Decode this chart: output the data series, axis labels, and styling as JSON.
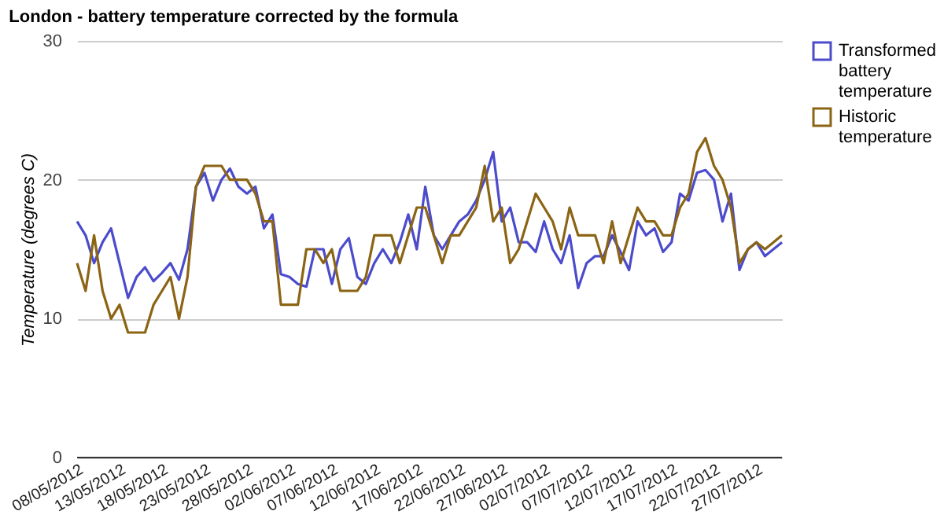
{
  "chart_data": {
    "type": "line",
    "title": "London - battery temperature corrected by the formula",
    "ylabel": "Temperature (degrees C)",
    "x": [
      "2012-05-08",
      "2012-05-09",
      "2012-05-10",
      "2012-05-11",
      "2012-05-12",
      "2012-05-13",
      "2012-05-14",
      "2012-05-15",
      "2012-05-16",
      "2012-05-17",
      "2012-05-18",
      "2012-05-19",
      "2012-05-20",
      "2012-05-21",
      "2012-05-22",
      "2012-05-23",
      "2012-05-24",
      "2012-05-25",
      "2012-05-26",
      "2012-05-27",
      "2012-05-28",
      "2012-05-29",
      "2012-05-30",
      "2012-05-31",
      "2012-06-01",
      "2012-06-02",
      "2012-06-03",
      "2012-06-04",
      "2012-06-05",
      "2012-06-06",
      "2012-06-07",
      "2012-06-08",
      "2012-06-09",
      "2012-06-10",
      "2012-06-11",
      "2012-06-12",
      "2012-06-13",
      "2012-06-14",
      "2012-06-15",
      "2012-06-16",
      "2012-06-17",
      "2012-06-18",
      "2012-06-19",
      "2012-06-20",
      "2012-06-21",
      "2012-06-22",
      "2012-06-23",
      "2012-06-24",
      "2012-06-25",
      "2012-06-26",
      "2012-06-27",
      "2012-06-28",
      "2012-06-29",
      "2012-06-30",
      "2012-07-01",
      "2012-07-02",
      "2012-07-03",
      "2012-07-04",
      "2012-07-05",
      "2012-07-06",
      "2012-07-07",
      "2012-07-08",
      "2012-07-09",
      "2012-07-10",
      "2012-07-11",
      "2012-07-12",
      "2012-07-13",
      "2012-07-14",
      "2012-07-15",
      "2012-07-16",
      "2012-07-17",
      "2012-07-18",
      "2012-07-19",
      "2012-07-20",
      "2012-07-21",
      "2012-07-22",
      "2012-07-23",
      "2012-07-24",
      "2012-07-25",
      "2012-07-26",
      "2012-07-27",
      "2012-07-28",
      "2012-07-29",
      "2012-07-30"
    ],
    "series": [
      {
        "name": "Transformed battery temperature",
        "color": "#4b4bcc",
        "values": [
          17,
          16,
          14,
          15.5,
          16.5,
          14,
          11.5,
          13,
          13.7,
          12.7,
          13.3,
          14,
          12.8,
          15,
          19.5,
          20.5,
          18.5,
          20,
          20.8,
          19.5,
          19,
          19.5,
          16.5,
          17.5,
          13.2,
          13,
          12.5,
          12.3,
          15,
          15,
          12.5,
          15,
          15.8,
          13,
          12.5,
          14,
          15,
          14,
          15.5,
          17.5,
          15,
          19.5,
          16,
          15,
          16,
          17,
          17.5,
          18.5,
          20,
          22,
          17,
          18,
          15.5,
          15.5,
          14.8,
          17,
          15,
          14,
          16,
          12.2,
          14,
          14.5,
          14.5,
          16,
          14.8,
          13.5,
          17,
          16,
          16.5,
          14.8,
          15.5,
          19,
          18.5,
          20.5,
          20.7,
          20,
          17,
          19,
          13.5,
          15,
          15.5,
          14.5,
          15,
          15.5
        ]
      },
      {
        "name": "Historic temperature",
        "color": "#8b6414",
        "values": [
          14,
          12,
          16,
          12,
          10,
          11,
          9,
          9,
          9,
          11,
          12,
          13,
          10,
          13,
          19.5,
          21,
          21,
          21,
          20,
          20,
          20,
          19,
          17,
          17,
          11,
          11,
          11,
          15,
          15,
          14,
          15,
          12,
          12,
          12,
          13,
          16,
          16,
          16,
          14,
          16,
          18,
          18,
          16,
          14,
          16,
          16,
          17,
          18,
          21,
          17,
          18,
          14,
          15,
          17,
          19,
          18,
          17,
          15,
          18,
          16,
          16,
          16,
          14,
          17,
          14,
          16,
          18,
          17,
          17,
          16,
          16,
          18,
          19,
          22,
          23,
          21,
          20,
          18,
          14,
          15,
          15.5,
          15,
          15.5,
          16
        ]
      }
    ],
    "xlim": [
      "2012-05-08",
      "2012-07-30"
    ],
    "xticks": [
      {
        "value": "2012-05-08",
        "label": "08/05/2012"
      },
      {
        "value": "2012-05-13",
        "label": "13/05/2012"
      },
      {
        "value": "2012-05-18",
        "label": "18/05/2012"
      },
      {
        "value": "2012-05-23",
        "label": "23/05/2012"
      },
      {
        "value": "2012-05-28",
        "label": "28/05/2012"
      },
      {
        "value": "2012-06-02",
        "label": "02/06/2012"
      },
      {
        "value": "2012-06-07",
        "label": "07/06/2012"
      },
      {
        "value": "2012-06-12",
        "label": "12/06/2012"
      },
      {
        "value": "2012-06-17",
        "label": "17/06/2012"
      },
      {
        "value": "2012-06-22",
        "label": "22/06/2012"
      },
      {
        "value": "2012-06-27",
        "label": "27/06/2012"
      },
      {
        "value": "2012-07-02",
        "label": "02/07/2012"
      },
      {
        "value": "2012-07-07",
        "label": "07/07/2012"
      },
      {
        "value": "2012-07-12",
        "label": "12/07/2012"
      },
      {
        "value": "2012-07-17",
        "label": "17/07/2012"
      },
      {
        "value": "2012-07-22",
        "label": "22/07/2012"
      },
      {
        "value": "2012-07-27",
        "label": "27/07/2012"
      }
    ],
    "ylim": [
      0,
      30
    ],
    "yticks": [
      0,
      10,
      20,
      30
    ],
    "grid": "y",
    "legend": "right",
    "marker": "none",
    "line_style": "solid"
  }
}
